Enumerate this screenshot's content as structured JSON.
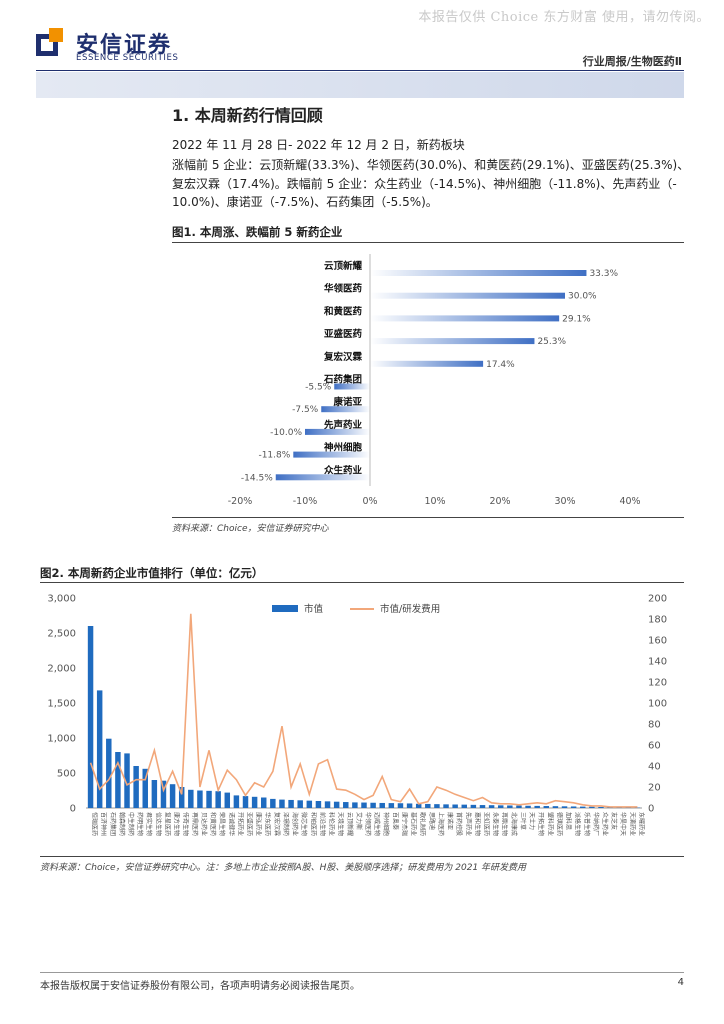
{
  "watermark": "本报告仅供 Choice 东方财富 使用，请勿传阅。",
  "brand": {
    "name_cn": "安信证券",
    "name_en": "ESSENCE SECURITIES",
    "color": "#1f2f6e"
  },
  "header": {
    "report_type": "行业周报/生物医药Ⅱ"
  },
  "section": {
    "title": "1. 本周新药行情回顾",
    "date_line": "2022 年 11 月 28 日- 2022 年 12 月 2 日，新药板块",
    "summary_1": "涨幅前 5 企业：云顶新耀(33.3%)、华领医药(30.0%)、和黄医药(29.1%)、亚盛医药(25.3%)、",
    "summary_2": "复宏汉霖（17.4%)。跌幅前 5 企业：众生药业（-14.5%)、神州细胞（-11.8%)、先声药业（-",
    "summary_3": "10.0%)、康诺亚（-7.5%)、石药集团（-5.5%)。"
  },
  "figure1": {
    "caption": "图1. 本周涨、跌幅前 5 新药企业",
    "source": "资料来源：Choice，安信证券研究中心",
    "chart_data": {
      "type": "bar",
      "orientation": "horizontal",
      "categories": [
        "云顶新耀",
        "华领医药",
        "和黄医药",
        "亚盛医药",
        "复宏汉霖",
        "石药集团",
        "康诺亚",
        "先声药业",
        "神州细胞",
        "众生药业"
      ],
      "values": [
        33.3,
        30.0,
        29.1,
        25.3,
        17.4,
        -5.5,
        -7.5,
        -10.0,
        -11.8,
        -14.5
      ],
      "data_labels": [
        "33.3%",
        "30.0%",
        "29.1%",
        "25.3%",
        "17.4%",
        "-5.5%",
        "-7.5%",
        "-10.0%",
        "-11.8%",
        "-14.5%"
      ],
      "xlim": [
        -20,
        40
      ],
      "xticks": [
        -20,
        -10,
        0,
        10,
        20,
        30,
        40
      ],
      "xtick_labels": [
        "-20%",
        "-10%",
        "0%",
        "10%",
        "20%",
        "30%",
        "40%"
      ],
      "bar_color": "#3f6fc4",
      "grid": false,
      "legend": "none"
    }
  },
  "figure2": {
    "caption": "图2. 本周新药企业市值排行（单位：亿元）",
    "source": "资料来源：Choice，安信证券研究中心。注：多地上市企业按照A股、H股、美股顺序选择；研发费用为 2021 年研发费用",
    "chart_data": {
      "type": "bar",
      "categories": [
        "恒瑞医药",
        "百济神州",
        "石药集团",
        "翰森制药",
        "中生制药",
        "药明生物",
        "君实生物",
        "信达生物",
        "复星医药",
        "康方生物",
        "传奇生物",
        "再鼎医药",
        "贝达药业",
        "和黄医药",
        "荣昌生物",
        "诺诚健华",
        "开拓药业",
        "亚盛医药",
        "康弘药业",
        "华东医药",
        "复宏汉霖",
        "泽璟制药",
        "海创药业",
        "微芯生物",
        "和铂医药",
        "前沿生物",
        "科伦药业",
        "天境生物",
        "云顶新耀",
        "艾力斯",
        "华领医药",
        "迈威生物",
        "神州细胞",
        "百奥泰",
        "康宁杰瑞",
        "基石药业",
        "歌礼制药",
        "思路迪",
        "上海医药",
        "康诺亚",
        "首药控股",
        "先声药业",
        "嘉和生物",
        "亚虹医药",
        "永泰生物",
        "再鼎生物",
        "北海康成",
        "三叶草",
        "天士力",
        "开拓生物",
        "盟科药业",
        "德琪医药",
        "加科思",
        "派格生物",
        "乐普生物",
        "华纳药厂",
        "众生药业",
        "友芝友",
        "华昊中天",
        "天演药业",
        "东曜药业"
      ],
      "series": [
        {
          "name": "市值",
          "axis": "left",
          "type": "bar",
          "color": "#1f6bbf",
          "values": [
            2600,
            1680,
            990,
            800,
            780,
            600,
            560,
            400,
            390,
            340,
            300,
            260,
            250,
            245,
            240,
            220,
            180,
            170,
            160,
            150,
            130,
            120,
            115,
            110,
            105,
            100,
            95,
            90,
            85,
            80,
            78,
            75,
            72,
            70,
            68,
            65,
            60,
            58,
            55,
            52,
            50,
            48,
            45,
            42,
            40,
            38,
            36,
            34,
            32,
            30,
            28,
            26,
            24,
            22,
            20,
            18,
            15,
            12,
            10,
            8,
            6
          ]
        },
        {
          "name": "市值/研发费用",
          "axis": "right",
          "type": "line",
          "color": "#f2a77a",
          "values": [
            43,
            18,
            27,
            43,
            22,
            27,
            27,
            55,
            17,
            35,
            13,
            185,
            20,
            55,
            17,
            36,
            27,
            12,
            24,
            20,
            35,
            78,
            20,
            42,
            13,
            42,
            46,
            18,
            17,
            13,
            8,
            12,
            30,
            8,
            6,
            18,
            4,
            6,
            20,
            17,
            13,
            10,
            7,
            10,
            5,
            4,
            4,
            3,
            4,
            5,
            4,
            7,
            6,
            5,
            3,
            2,
            2,
            1,
            1,
            1,
            1
          ]
        }
      ],
      "ylim_left": [
        0,
        3000
      ],
      "yticks_left": [
        "0",
        "500",
        "1,000",
        "1,500",
        "2,000",
        "2,500",
        "3,000"
      ],
      "ylim_right": [
        0,
        200
      ],
      "yticks_right": [
        "0",
        "20",
        "40",
        "60",
        "80",
        "100",
        "120",
        "140",
        "160",
        "180",
        "200"
      ],
      "legend": "top-center",
      "grid": false
    }
  },
  "footer": {
    "disclaimer": "本报告版权属于安信证券股份有限公司，各项声明请务必阅读报告尾页。",
    "page": "4"
  }
}
